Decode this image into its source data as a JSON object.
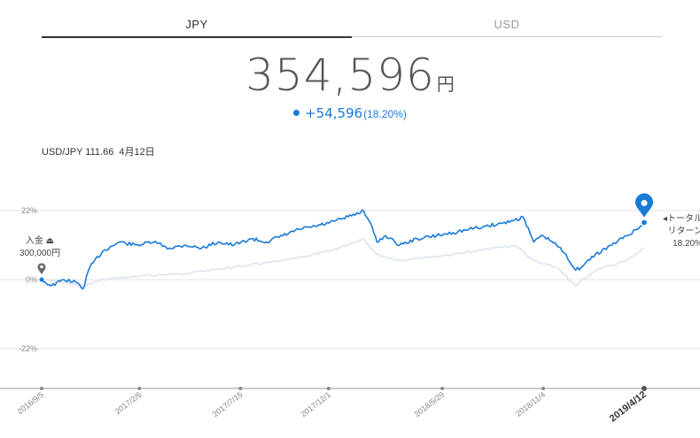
{
  "tabs": [
    {
      "label": "JPY",
      "active": true
    },
    {
      "label": "USD",
      "active": false
    }
  ],
  "summary": {
    "amount": "354,596",
    "unit": "円",
    "gain": "+54,596",
    "gain_pct": "(18.20%)"
  },
  "fx_rate": {
    "label": "USD/JPY 111.66",
    "date": "4月12日"
  },
  "deposit": {
    "label": "入金",
    "icon": "deposit-icon",
    "amount": "300,000円"
  },
  "total_return": {
    "line1": "トータル",
    "line2": "リターン",
    "value": "18.20%"
  },
  "colors": {
    "accent": "#1a7ad8",
    "benchmark": "#dde3ef",
    "grid": "#e6e6e6"
  },
  "chart_data": {
    "type": "line",
    "y_ticks": [
      {
        "label": "22%",
        "value": 22
      },
      {
        "label": "0%",
        "value": 0
      },
      {
        "label": "-22%",
        "value": -22
      }
    ],
    "ylim": [
      -34,
      30
    ],
    "x_ticks": [
      {
        "label": "2016/9/5",
        "date": "2016-09-05"
      },
      {
        "label": "2017/2/6",
        "date": "2017-02-06"
      },
      {
        "label": "2017/7/15",
        "date": "2017-07-15"
      },
      {
        "label": "2017/12/1",
        "date": "2017-12-01"
      },
      {
        "label": "2018/5/29",
        "date": "2018-05-29"
      },
      {
        "label": "2018/11/4",
        "date": "2018-11-04"
      },
      {
        "label": "2019/4/12",
        "date": "2019-04-12",
        "bold": true
      }
    ],
    "series": [
      {
        "role": "portfolio",
        "x": [
          "2016-09-05",
          "2016-09-20",
          "2016-10-10",
          "2016-10-31",
          "2016-11-09",
          "2016-11-20",
          "2016-12-10",
          "2017-01-05",
          "2017-02-01",
          "2017-03-01",
          "2017-03-25",
          "2017-04-20",
          "2017-05-15",
          "2017-06-10",
          "2017-07-05",
          "2017-08-01",
          "2017-08-25",
          "2017-09-20",
          "2017-10-15",
          "2017-11-10",
          "2017-12-01",
          "2018-01-01",
          "2018-01-25",
          "2018-02-05",
          "2018-02-15",
          "2018-03-01",
          "2018-03-23",
          "2018-04-20",
          "2018-05-20",
          "2018-06-15",
          "2018-07-10",
          "2018-08-05",
          "2018-09-01",
          "2018-09-20",
          "2018-10-03",
          "2018-10-20",
          "2018-11-04",
          "2018-11-25",
          "2018-12-10",
          "2018-12-25",
          "2019-01-03",
          "2019-01-25",
          "2019-02-20",
          "2019-03-15",
          "2019-04-01",
          "2019-04-12"
        ],
        "y": [
          0,
          -2,
          0,
          -1,
          -3,
          4,
          9,
          12,
          11,
          12,
          10,
          11,
          10,
          12,
          11,
          13,
          12,
          14,
          16,
          17,
          18,
          20,
          22,
          18,
          12,
          14,
          11,
          13,
          14,
          15,
          16,
          17,
          18,
          19,
          20,
          12,
          14,
          11,
          8,
          3,
          4,
          8,
          11,
          14,
          16,
          18.2
        ]
      },
      {
        "role": "benchmark",
        "x": [
          "2016-09-05",
          "2016-10-10",
          "2016-11-09",
          "2016-12-10",
          "2017-02-01",
          "2017-04-20",
          "2017-07-05",
          "2017-09-20",
          "2017-12-01",
          "2018-01-25",
          "2018-02-15",
          "2018-03-23",
          "2018-06-15",
          "2018-09-20",
          "2018-10-20",
          "2018-11-25",
          "2018-12-25",
          "2019-01-25",
          "2019-03-15",
          "2019-04-12"
        ],
        "y": [
          0,
          -1,
          -2,
          0,
          1,
          2,
          4,
          6,
          9,
          13,
          8,
          6,
          8,
          11,
          6,
          4,
          -2,
          3,
          6,
          10
        ]
      }
    ],
    "grid": true
  }
}
